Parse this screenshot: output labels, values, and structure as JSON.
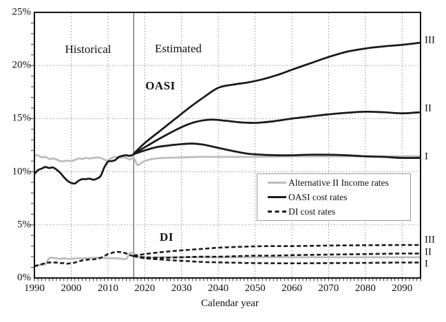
{
  "figure": {
    "annotations": {
      "historical": "Historical",
      "estimated": "Estimated",
      "oasi": "OASI",
      "di": "DI"
    },
    "legend": {
      "items": [
        {
          "label": "Alternative II Income rates",
          "style": "gray-solid"
        },
        {
          "label": "OASI cost rates",
          "style": "black-solid"
        },
        {
          "label": "DI cost rates",
          "style": "black-dashed"
        }
      ]
    },
    "colors": {
      "line_black": "#1a1a1a",
      "line_gray": "#bcbcbc",
      "grid": "#8a8a8a",
      "boundary": "#666666",
      "frame": "#111111"
    }
  },
  "chart_data": {
    "type": "line",
    "title": "",
    "xlabel": "Calendar year",
    "ylabel": "",
    "x_range": [
      1990,
      2095
    ],
    "y_range": [
      0,
      25
    ],
    "x_ticks": [
      1990,
      2000,
      2010,
      2020,
      2030,
      2040,
      2050,
      2060,
      2070,
      2080,
      2090
    ],
    "y_ticks": [
      0,
      5,
      10,
      15,
      20,
      25
    ],
    "y_tick_labels": [
      "0%",
      "5%",
      "10%",
      "15%",
      "20%",
      "25%"
    ],
    "grid": "dotted",
    "legend_position": "middle-right",
    "boundary_year": 2017,
    "series": [
      {
        "name": "OASI income rate (Alternative II)",
        "color": "#bcbcbc",
        "dash": "solid",
        "points": [
          [
            1990,
            11.5
          ],
          [
            1991,
            11.55
          ],
          [
            1992,
            11.35
          ],
          [
            1993,
            11.4
          ],
          [
            1994,
            11.2
          ],
          [
            1995,
            11.25
          ],
          [
            1996,
            11.15
          ],
          [
            1997,
            11.0
          ],
          [
            1998,
            11.0
          ],
          [
            1999,
            11.05
          ],
          [
            2000,
            11.0
          ],
          [
            2001,
            11.1
          ],
          [
            2002,
            11.25
          ],
          [
            2003,
            11.2
          ],
          [
            2004,
            11.3
          ],
          [
            2005,
            11.25
          ],
          [
            2006,
            11.3
          ],
          [
            2007,
            11.35
          ],
          [
            2008,
            11.3
          ],
          [
            2009,
            11.15
          ],
          [
            2010,
            11.05
          ],
          [
            2011,
            11.3
          ],
          [
            2012,
            11.4
          ],
          [
            2013,
            11.3
          ],
          [
            2014,
            11.35
          ],
          [
            2015,
            11.3
          ],
          [
            2016,
            11.15
          ],
          [
            2017,
            11.3
          ],
          [
            2018,
            10.65
          ],
          [
            2019,
            10.8
          ],
          [
            2020,
            11.0
          ],
          [
            2022,
            11.2
          ],
          [
            2025,
            11.3
          ],
          [
            2030,
            11.35
          ],
          [
            2035,
            11.4
          ],
          [
            2040,
            11.4
          ],
          [
            2050,
            11.4
          ],
          [
            2060,
            11.45
          ],
          [
            2070,
            11.45
          ],
          [
            2080,
            11.45
          ],
          [
            2090,
            11.45
          ],
          [
            2095,
            11.45
          ]
        ]
      },
      {
        "name": "DI income rate (Alternative II)",
        "color": "#bcbcbc",
        "dash": "solid",
        "points": [
          [
            1990,
            1.15
          ],
          [
            1991,
            1.2
          ],
          [
            1992,
            1.25
          ],
          [
            1993,
            1.3
          ],
          [
            1994,
            1.85
          ],
          [
            1995,
            1.9
          ],
          [
            1996,
            1.85
          ],
          [
            1997,
            1.8
          ],
          [
            1998,
            1.85
          ],
          [
            1999,
            1.8
          ],
          [
            2000,
            1.8
          ],
          [
            2002,
            1.85
          ],
          [
            2004,
            1.85
          ],
          [
            2006,
            1.9
          ],
          [
            2008,
            1.9
          ],
          [
            2010,
            1.85
          ],
          [
            2012,
            1.85
          ],
          [
            2014,
            1.8
          ],
          [
            2015,
            1.8
          ],
          [
            2016,
            2.35
          ],
          [
            2017,
            2.3
          ],
          [
            2018,
            2.1
          ],
          [
            2019,
            1.95
          ],
          [
            2020,
            1.9
          ],
          [
            2025,
            1.95
          ],
          [
            2030,
            1.95
          ],
          [
            2040,
            1.95
          ],
          [
            2050,
            1.95
          ],
          [
            2060,
            1.95
          ],
          [
            2070,
            1.95
          ],
          [
            2080,
            1.95
          ],
          [
            2090,
            1.95
          ],
          [
            2095,
            1.95
          ]
        ]
      },
      {
        "name": "OASI cost rate (historical)",
        "color": "#1a1a1a",
        "dash": "solid",
        "points": [
          [
            1990,
            9.8
          ],
          [
            1991,
            10.15
          ],
          [
            1992,
            10.3
          ],
          [
            1993,
            10.45
          ],
          [
            1994,
            10.35
          ],
          [
            1995,
            10.4
          ],
          [
            1996,
            10.2
          ],
          [
            1997,
            9.9
          ],
          [
            1998,
            9.5
          ],
          [
            1999,
            9.15
          ],
          [
            2000,
            8.95
          ],
          [
            2001,
            8.9
          ],
          [
            2002,
            9.15
          ],
          [
            2003,
            9.3
          ],
          [
            2004,
            9.3
          ],
          [
            2005,
            9.35
          ],
          [
            2006,
            9.25
          ],
          [
            2007,
            9.35
          ],
          [
            2008,
            9.6
          ],
          [
            2009,
            10.4
          ],
          [
            2010,
            10.95
          ],
          [
            2011,
            11.0
          ],
          [
            2012,
            11.1
          ],
          [
            2013,
            11.4
          ],
          [
            2014,
            11.5
          ],
          [
            2015,
            11.55
          ],
          [
            2016,
            11.5
          ],
          [
            2017,
            11.65
          ]
        ]
      },
      {
        "name": "OASI cost rate (Alternative I)",
        "color": "#1a1a1a",
        "dash": "solid",
        "points": [
          [
            2017,
            11.65
          ],
          [
            2020,
            12.0
          ],
          [
            2023,
            12.3
          ],
          [
            2026,
            12.45
          ],
          [
            2030,
            12.6
          ],
          [
            2033,
            12.65
          ],
          [
            2036,
            12.55
          ],
          [
            2040,
            12.25
          ],
          [
            2044,
            11.95
          ],
          [
            2048,
            11.7
          ],
          [
            2052,
            11.6
          ],
          [
            2056,
            11.55
          ],
          [
            2060,
            11.55
          ],
          [
            2065,
            11.6
          ],
          [
            2070,
            11.6
          ],
          [
            2075,
            11.55
          ],
          [
            2080,
            11.45
          ],
          [
            2085,
            11.4
          ],
          [
            2090,
            11.3
          ],
          [
            2095,
            11.3
          ]
        ]
      },
      {
        "name": "OASI cost rate (Alternative II)",
        "color": "#1a1a1a",
        "dash": "solid",
        "points": [
          [
            2017,
            11.65
          ],
          [
            2020,
            12.3
          ],
          [
            2025,
            13.3
          ],
          [
            2030,
            14.2
          ],
          [
            2034,
            14.7
          ],
          [
            2038,
            14.9
          ],
          [
            2042,
            14.8
          ],
          [
            2046,
            14.65
          ],
          [
            2050,
            14.6
          ],
          [
            2055,
            14.75
          ],
          [
            2060,
            15.0
          ],
          [
            2065,
            15.2
          ],
          [
            2070,
            15.4
          ],
          [
            2075,
            15.55
          ],
          [
            2080,
            15.65
          ],
          [
            2085,
            15.6
          ],
          [
            2090,
            15.5
          ],
          [
            2095,
            15.6
          ]
        ]
      },
      {
        "name": "OASI cost rate (Alternative III)",
        "color": "#1a1a1a",
        "dash": "solid",
        "points": [
          [
            2017,
            11.7
          ],
          [
            2020,
            12.7
          ],
          [
            2024,
            13.8
          ],
          [
            2028,
            14.9
          ],
          [
            2032,
            16.0
          ],
          [
            2036,
            17.0
          ],
          [
            2040,
            17.9
          ],
          [
            2044,
            18.2
          ],
          [
            2048,
            18.4
          ],
          [
            2052,
            18.7
          ],
          [
            2056,
            19.1
          ],
          [
            2060,
            19.6
          ],
          [
            2065,
            20.2
          ],
          [
            2070,
            20.8
          ],
          [
            2075,
            21.3
          ],
          [
            2080,
            21.6
          ],
          [
            2085,
            21.8
          ],
          [
            2090,
            21.95
          ],
          [
            2095,
            22.15
          ]
        ]
      },
      {
        "name": "DI cost rate (historical)",
        "color": "#1a1a1a",
        "dash": "dashed",
        "points": [
          [
            1990,
            1.1
          ],
          [
            1991,
            1.2
          ],
          [
            1992,
            1.3
          ],
          [
            1993,
            1.4
          ],
          [
            1994,
            1.45
          ],
          [
            1995,
            1.45
          ],
          [
            1996,
            1.45
          ],
          [
            1997,
            1.4
          ],
          [
            1998,
            1.4
          ],
          [
            1999,
            1.35
          ],
          [
            2000,
            1.4
          ],
          [
            2001,
            1.45
          ],
          [
            2002,
            1.55
          ],
          [
            2003,
            1.65
          ],
          [
            2004,
            1.7
          ],
          [
            2005,
            1.75
          ],
          [
            2006,
            1.75
          ],
          [
            2007,
            1.8
          ],
          [
            2008,
            1.9
          ],
          [
            2009,
            2.05
          ],
          [
            2010,
            2.25
          ],
          [
            2011,
            2.35
          ],
          [
            2012,
            2.45
          ],
          [
            2013,
            2.45
          ],
          [
            2014,
            2.4
          ],
          [
            2015,
            2.3
          ],
          [
            2016,
            2.15
          ],
          [
            2017,
            2.05
          ]
        ]
      },
      {
        "name": "DI cost rate (Alternative I)",
        "color": "#1a1a1a",
        "dash": "dashed",
        "points": [
          [
            2017,
            2.05
          ],
          [
            2020,
            1.85
          ],
          [
            2024,
            1.75
          ],
          [
            2028,
            1.65
          ],
          [
            2032,
            1.58
          ],
          [
            2036,
            1.5
          ],
          [
            2040,
            1.47
          ],
          [
            2045,
            1.43
          ],
          [
            2050,
            1.4
          ],
          [
            2060,
            1.38
          ],
          [
            2070,
            1.4
          ],
          [
            2080,
            1.42
          ],
          [
            2090,
            1.45
          ],
          [
            2095,
            1.45
          ]
        ]
      },
      {
        "name": "DI cost rate (Alternative II)",
        "color": "#1a1a1a",
        "dash": "dashed",
        "points": [
          [
            2017,
            2.05
          ],
          [
            2020,
            1.95
          ],
          [
            2025,
            1.9
          ],
          [
            2030,
            1.95
          ],
          [
            2035,
            2.0
          ],
          [
            2040,
            2.0
          ],
          [
            2045,
            2.05
          ],
          [
            2050,
            2.1
          ],
          [
            2055,
            2.1
          ],
          [
            2060,
            2.15
          ],
          [
            2070,
            2.2
          ],
          [
            2080,
            2.25
          ],
          [
            2090,
            2.3
          ],
          [
            2095,
            2.3
          ]
        ]
      },
      {
        "name": "DI cost rate (Alternative III)",
        "color": "#1a1a1a",
        "dash": "dashed",
        "points": [
          [
            2017,
            2.1
          ],
          [
            2020,
            2.25
          ],
          [
            2025,
            2.45
          ],
          [
            2030,
            2.6
          ],
          [
            2035,
            2.72
          ],
          [
            2040,
            2.85
          ],
          [
            2045,
            2.92
          ],
          [
            2050,
            2.98
          ],
          [
            2055,
            3.0
          ],
          [
            2060,
            3.0
          ],
          [
            2070,
            3.05
          ],
          [
            2080,
            3.08
          ],
          [
            2090,
            3.1
          ],
          [
            2095,
            3.1
          ]
        ]
      }
    ],
    "right_labels": [
      {
        "text": "III",
        "group": "oasi",
        "at_value": 22.15,
        "nudge": -3
      },
      {
        "text": "II",
        "group": "oasi",
        "at_value": 15.6,
        "nudge": -5
      },
      {
        "text": "I",
        "group": "oasi",
        "at_value": 11.3,
        "nudge": -2
      },
      {
        "text": "III",
        "group": "di",
        "at_value": 3.1,
        "nudge": -7
      },
      {
        "text": "II",
        "group": "di",
        "at_value": 2.3,
        "nudge": -1
      },
      {
        "text": "I",
        "group": "di",
        "at_value": 1.45,
        "nudge": 2
      }
    ]
  }
}
